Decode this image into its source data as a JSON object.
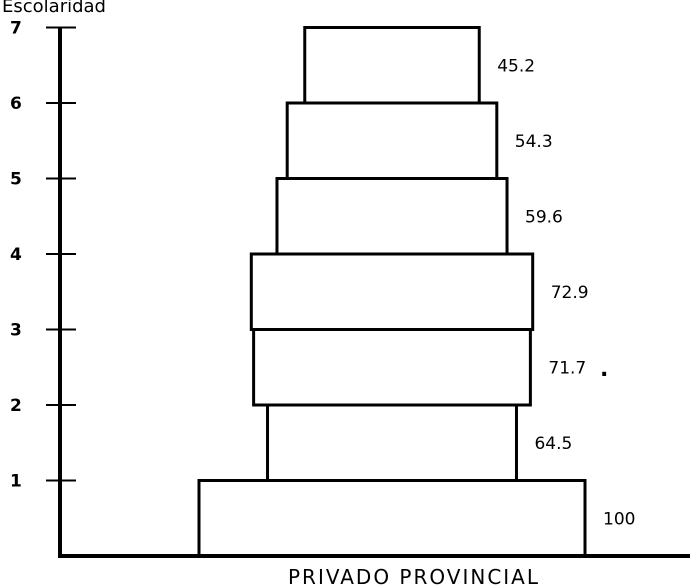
{
  "chart_data": {
    "type": "bar",
    "orientation": "horizontal",
    "style": "population pyramid (stacked, centered bars)",
    "ylabel": "Escolaridad",
    "xlabel": "PRIVADO PROVINCIAL",
    "categories": [
      "1",
      "2",
      "3",
      "4",
      "5",
      "6",
      "7"
    ],
    "values": [
      100,
      64.5,
      71.7,
      72.9,
      59.6,
      54.3,
      45.2
    ],
    "value_labels": [
      "100",
      "64.5",
      "71.7",
      "72.9",
      "59.6",
      "54.3",
      "45.2"
    ],
    "ylim": [
      0,
      7
    ],
    "grid": false
  }
}
